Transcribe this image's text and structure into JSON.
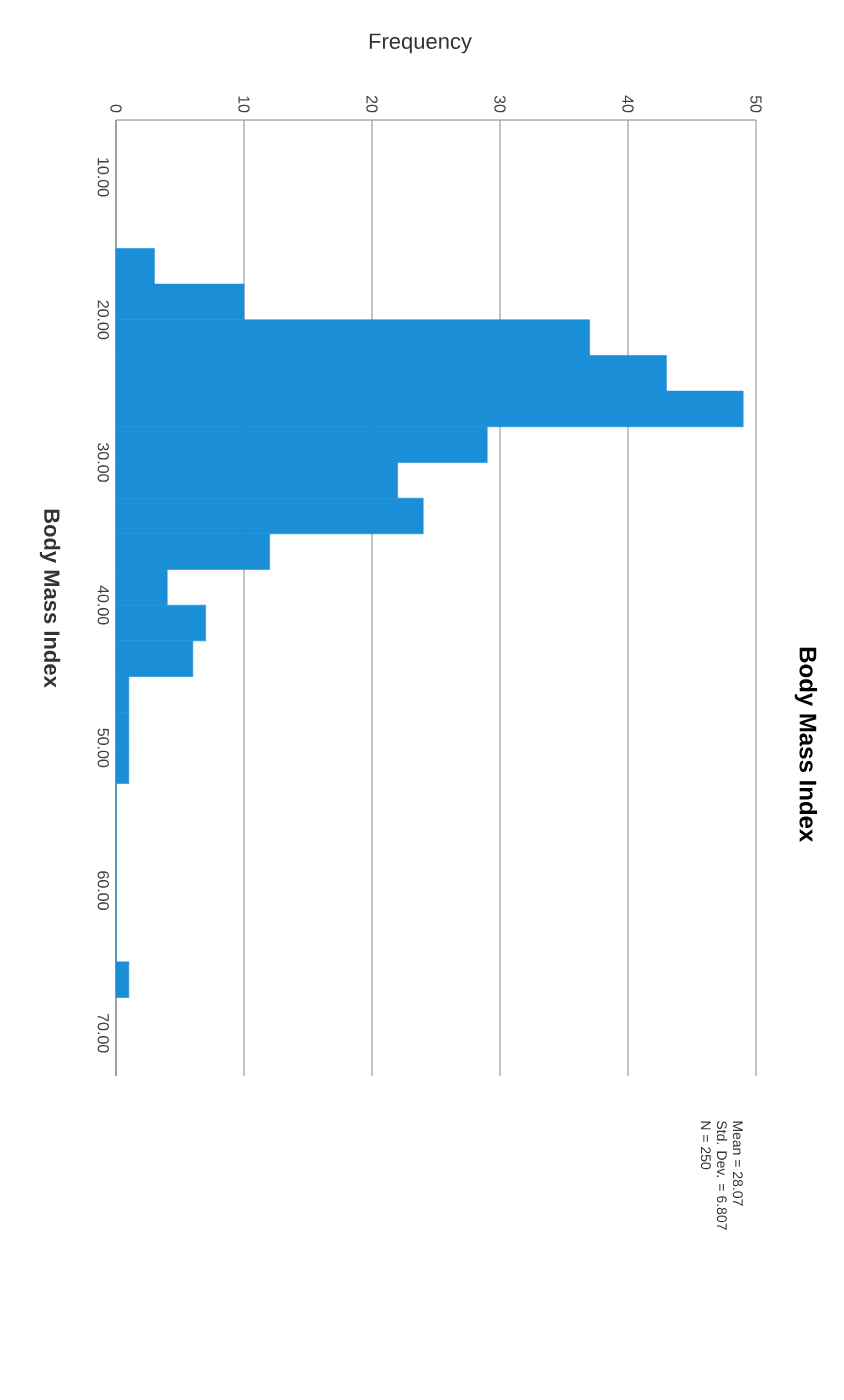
{
  "chart_data": {
    "type": "histogram",
    "orientation": "horizontal",
    "title": "Body Mass Index",
    "xlabel": "Frequency",
    "ylabel": "Body Mass Index",
    "bins": [
      15,
      17.5,
      20,
      22.5,
      25,
      27.5,
      30,
      32.5,
      35,
      37.5,
      40,
      42.5,
      45,
      47.5,
      50,
      52.5,
      55,
      57.5,
      60,
      62.5,
      65,
      67.5
    ],
    "values": [
      3,
      10,
      37,
      43,
      49,
      29,
      22,
      24,
      12,
      4,
      7,
      6,
      1,
      1,
      1,
      0,
      0,
      0,
      0,
      0,
      1
    ],
    "color": "#1a8fd8",
    "xlim": [
      0,
      50
    ],
    "ylim": [
      73,
      6
    ],
    "xticks": [
      0,
      10,
      20,
      30,
      40,
      50
    ],
    "yticks": [
      {
        "value": 10,
        "label": "10.00"
      },
      {
        "value": 20,
        "label": "20.00"
      },
      {
        "value": 30,
        "label": "30.00"
      },
      {
        "value": 40,
        "label": "40.00"
      },
      {
        "value": 50,
        "label": "50.00"
      },
      {
        "value": 60,
        "label": "60.00"
      },
      {
        "value": 70,
        "label": "70.00"
      }
    ],
    "grid": "x",
    "annotations": [
      "Mean = 28.07",
      "Std. Dev. = 6.807",
      "N = 250"
    ]
  }
}
